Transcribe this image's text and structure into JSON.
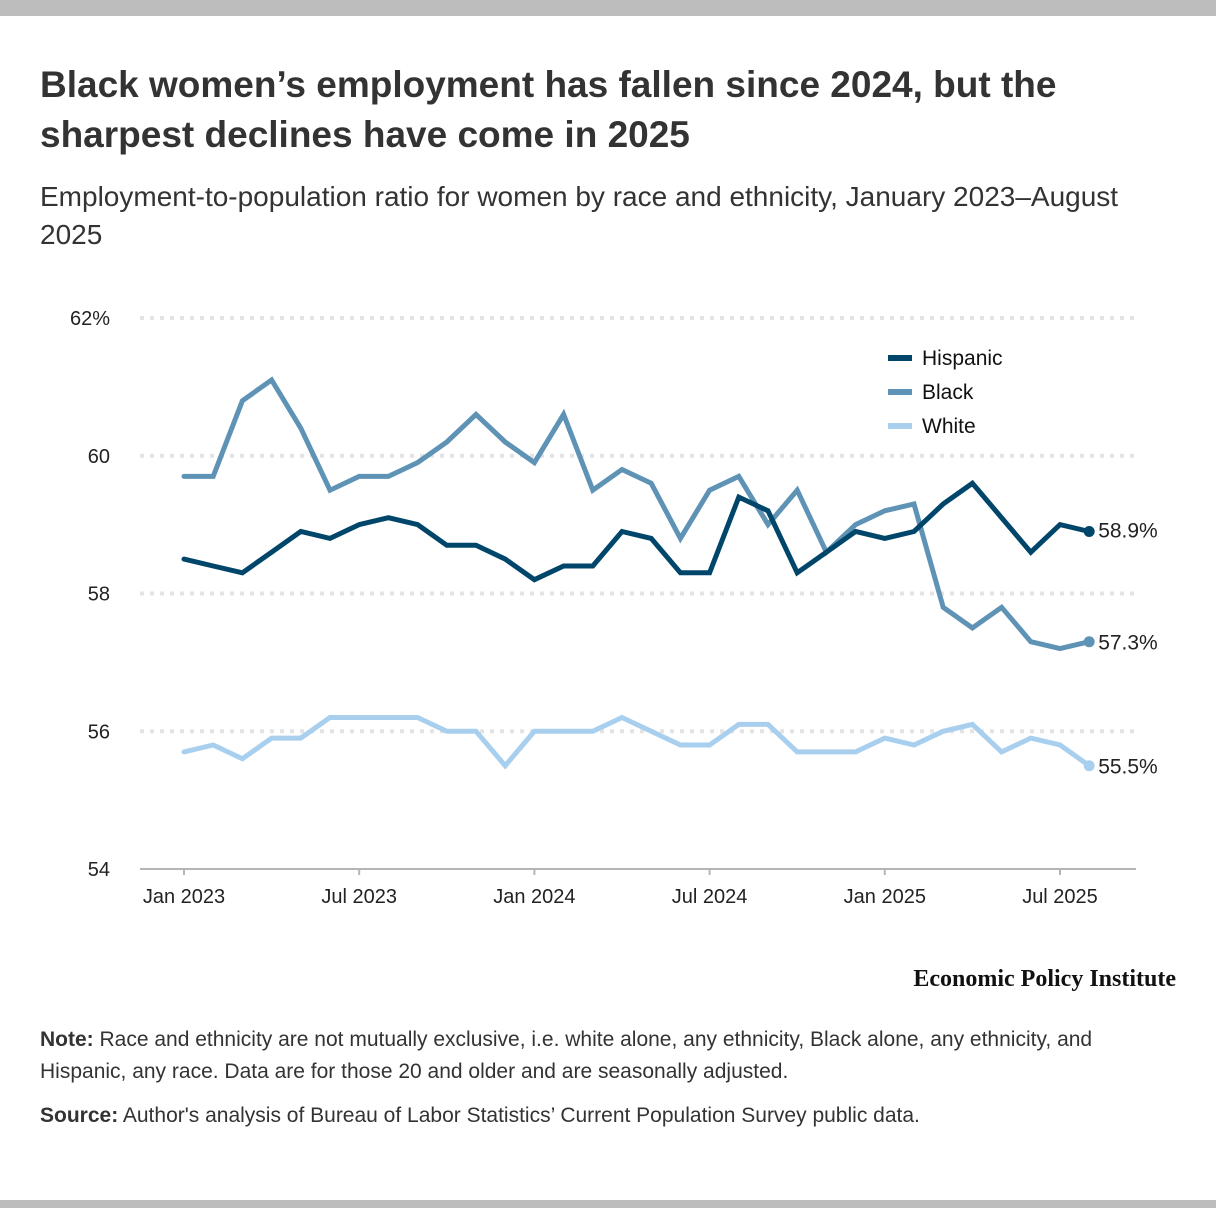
{
  "title": "Black women’s employment has fallen since 2024, but the sharpest declines have come in 2025",
  "subtitle": "Employment-to-population ratio for women by race and ethnicity, January 2023–August 2025",
  "brand": "Economic Policy Institute",
  "note_label": "Note:",
  "note_text": " Race and ethnicity are not mutually exclusive, i.e. white alone, any ethnicity, Black alone, any ethnicity, and Hispanic, any race. Data are for those 20 and older and are seasonally adjusted.",
  "source_label": "Source:",
  "source_text": " Author's analysis of Bureau of Labor Statistics’ Current Population Survey public data.",
  "chart_data": {
    "type": "line",
    "title": "Black women’s employment has fallen since 2024, but the sharpest declines have come in 2025",
    "subtitle": "Employment-to-population ratio for women by race and ethnicity, January 2023–August 2025",
    "xlabel": "",
    "ylabel": "",
    "ylim": [
      54,
      62
    ],
    "yticks": [
      54,
      56,
      58,
      60,
      62
    ],
    "ytick_labels": [
      "54",
      "56",
      "58",
      "60",
      "62%"
    ],
    "xtick_labels": [
      "Jan 2023",
      "Jul 2023",
      "Jan 2024",
      "Jul 2024",
      "Jan 2025",
      "Jul 2025"
    ],
    "xtick_index": [
      0,
      6,
      12,
      18,
      24,
      30
    ],
    "grid": true,
    "legend_position": "top-right",
    "x": [
      "2023-01",
      "2023-02",
      "2023-03",
      "2023-04",
      "2023-05",
      "2023-06",
      "2023-07",
      "2023-08",
      "2023-09",
      "2023-10",
      "2023-11",
      "2023-12",
      "2024-01",
      "2024-02",
      "2024-03",
      "2024-04",
      "2024-05",
      "2024-06",
      "2024-07",
      "2024-08",
      "2024-09",
      "2024-10",
      "2024-11",
      "2024-12",
      "2025-01",
      "2025-02",
      "2025-03",
      "2025-04",
      "2025-05",
      "2025-06",
      "2025-07",
      "2025-08"
    ],
    "series": [
      {
        "name": "Hispanic",
        "color": "#00466a",
        "end_label": "58.9%",
        "values": [
          58.5,
          58.4,
          58.3,
          58.6,
          58.9,
          58.8,
          59.0,
          59.1,
          59.0,
          58.7,
          58.7,
          58.5,
          58.2,
          58.4,
          58.4,
          58.9,
          58.8,
          58.3,
          58.3,
          59.4,
          59.2,
          58.3,
          58.6,
          58.9,
          58.8,
          58.9,
          59.3,
          59.6,
          59.1,
          58.6,
          59.0,
          58.9
        ]
      },
      {
        "name": "Black",
        "color": "#5f93b6",
        "end_label": "57.3%",
        "values": [
          59.7,
          59.7,
          60.8,
          61.1,
          60.4,
          59.5,
          59.7,
          59.7,
          59.9,
          60.2,
          60.6,
          60.2,
          59.9,
          60.6,
          59.5,
          59.8,
          59.6,
          58.8,
          59.5,
          59.7,
          59.0,
          59.5,
          58.6,
          59.0,
          59.2,
          59.3,
          57.8,
          57.5,
          57.8,
          57.3,
          57.2,
          57.3
        ]
      },
      {
        "name": "White",
        "color": "#a9cfef",
        "end_label": "55.5%",
        "values": [
          55.7,
          55.8,
          55.6,
          55.9,
          55.9,
          56.2,
          56.2,
          56.2,
          56.2,
          56.0,
          56.0,
          55.5,
          56.0,
          56.0,
          56.0,
          56.2,
          56.0,
          55.8,
          55.8,
          56.1,
          56.1,
          55.7,
          55.7,
          55.7,
          55.9,
          55.8,
          56.0,
          56.1,
          55.7,
          55.9,
          55.8,
          55.5
        ]
      }
    ]
  }
}
